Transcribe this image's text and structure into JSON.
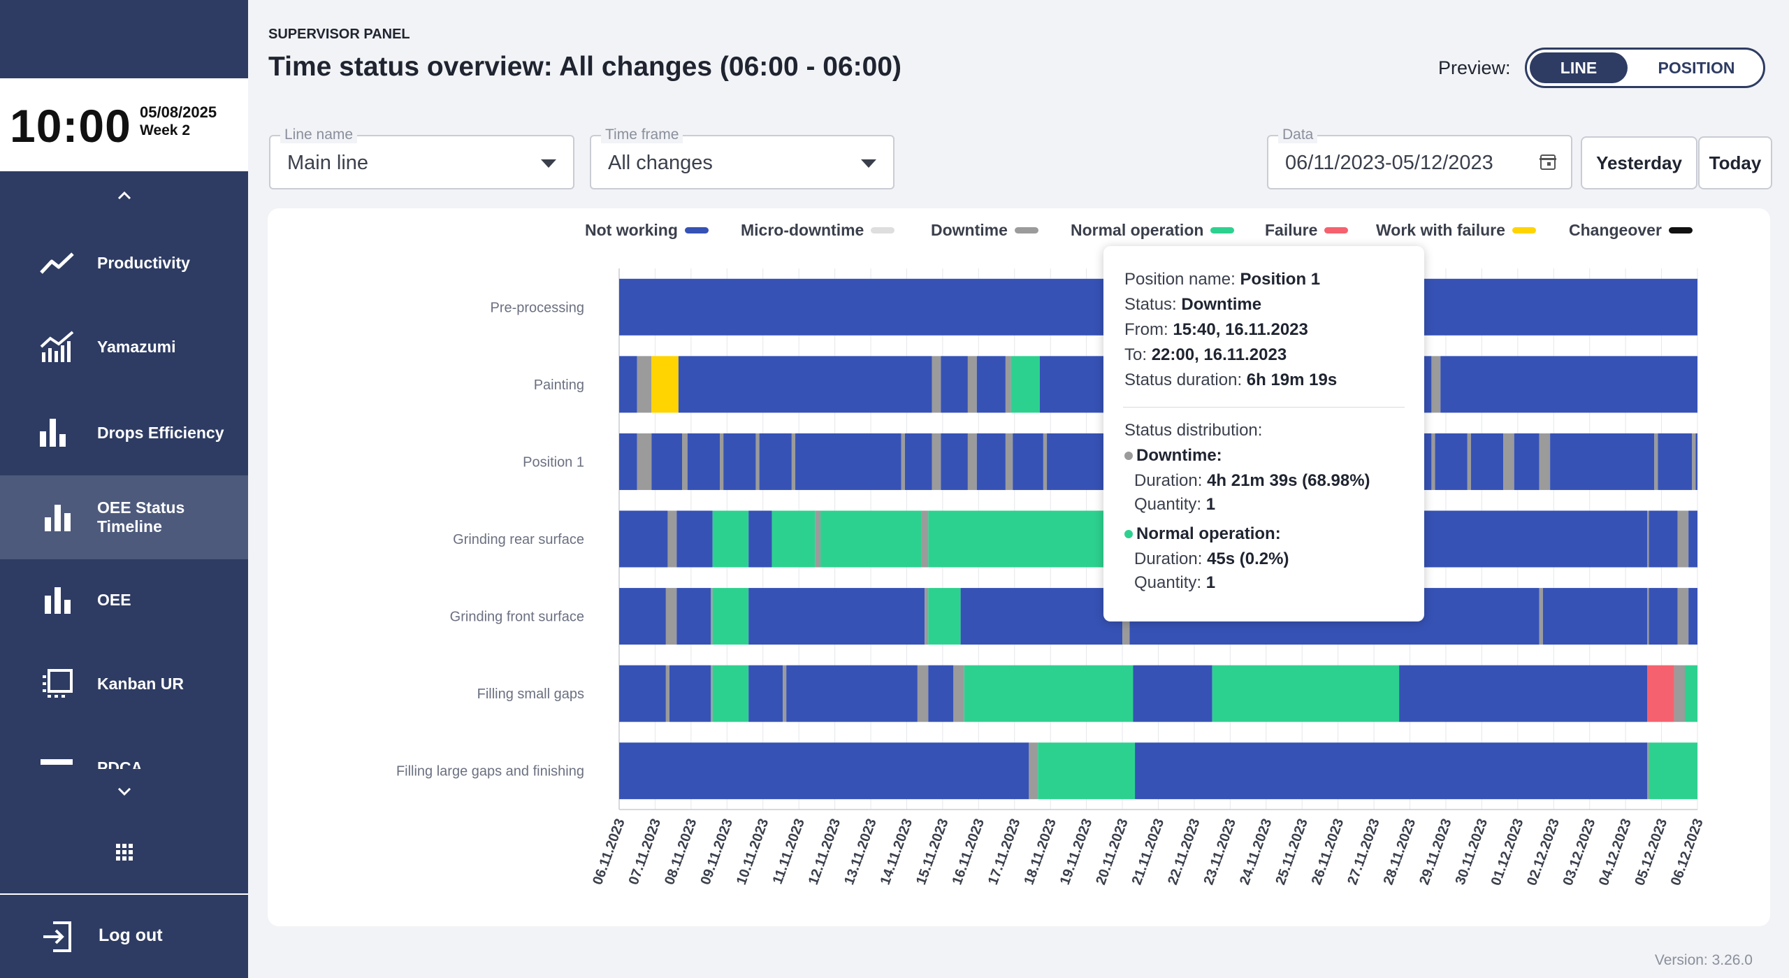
{
  "sidebar": {
    "clock": {
      "time": "10:00",
      "date": "05/08/2025",
      "week": "Week 2"
    },
    "items": [
      {
        "label": "Productivity",
        "icon": "trend-line-icon"
      },
      {
        "label": "Yamazumi",
        "icon": "area-chart-icon"
      },
      {
        "label": "Drops Efficiency",
        "icon": "bar-chart-icon"
      },
      {
        "label": "OEE Status Timeline",
        "icon": "bar-chart-icon",
        "active": true
      },
      {
        "label": "OEE",
        "icon": "bar-chart-icon"
      },
      {
        "label": "Kanban UR",
        "icon": "kanban-icon"
      },
      {
        "label": "PDCA",
        "icon": "list-icon"
      }
    ],
    "logout_label": "Log out"
  },
  "header": {
    "eyebrow": "SUPERVISOR PANEL",
    "title": "Time status overview: All changes (06:00 - 06:00)",
    "preview_label": "Preview:",
    "preview_options": [
      "LINE",
      "POSITION"
    ],
    "preview_selected": "LINE"
  },
  "filters": {
    "line_name": {
      "label": "Line name",
      "value": "Main line"
    },
    "time_frame": {
      "label": "Time frame",
      "value": "All changes"
    },
    "date": {
      "label": "Data",
      "value": "06/11/2023-05/12/2023"
    },
    "yesterday_label": "Yesterday",
    "today_label": "Today"
  },
  "version": "Version: 3.26.0",
  "colors": {
    "Not working": "#3652b5",
    "Micro-downtime": "#dedede",
    "Downtime": "#9b9b9b",
    "Normal operation": "#2dd18f",
    "Failure": "#f5616e",
    "Work with failure": "#ffd400",
    "Changeover": "#111111"
  },
  "tooltip": {
    "position_label": "Position name:",
    "position_value": "Position 1",
    "status_label": "Status:",
    "status_value": "Downtime",
    "from_label": "From:",
    "from_value": "15:40, 16.11.2023",
    "to_label": "To:",
    "to_value": "22:00, 16.11.2023",
    "duration_label": "Status duration:",
    "duration_value": "6h 19m 19s",
    "distribution_label": "Status distribution:",
    "dist": [
      {
        "status": "Downtime:",
        "color": "#9b9b9b",
        "duration_label": "Duration:",
        "duration": "4h 21m 39s (68.98%)",
        "quantity_label": "Quantity:",
        "quantity": "1"
      },
      {
        "status": "Normal operation:",
        "color": "#2dd18f",
        "duration_label": "Duration:",
        "duration": "45s (0.2%)",
        "quantity_label": "Quantity:",
        "quantity": "1"
      }
    ]
  },
  "chart_data": {
    "type": "timeline",
    "x_unit": "days",
    "x_start": "06.11.2023",
    "x_end": "06.12.2023",
    "x_tick_labels": [
      "06.11.2023",
      "07.11.2023",
      "08.11.2023",
      "09.11.2023",
      "10.11.2023",
      "11.11.2023",
      "12.11.2023",
      "13.11.2023",
      "14.11.2023",
      "15.11.2023",
      "16.11.2023",
      "17.11.2023",
      "18.11.2023",
      "19.11.2023",
      "20.11.2023",
      "21.11.2023",
      "22.11.2023",
      "23.11.2023",
      "24.11.2023",
      "25.11.2023",
      "26.11.2023",
      "27.11.2023",
      "28.11.2023",
      "29.11.2023",
      "30.11.2023",
      "01.12.2023",
      "02.12.2023",
      "03.12.2023",
      "04.12.2023",
      "05.12.2023",
      "06.12.2023"
    ],
    "legend": [
      "Not working",
      "Micro-downtime",
      "Downtime",
      "Normal operation",
      "Failure",
      "Work with failure",
      "Changeover"
    ],
    "rows": [
      {
        "name": "Pre-processing",
        "segments": [
          {
            "start": 0,
            "end": 30,
            "status": "Not working"
          }
        ]
      },
      {
        "name": "Painting",
        "segments": [
          {
            "start": 0,
            "end": 0.5,
            "status": "Not working"
          },
          {
            "start": 0.5,
            "end": 0.9,
            "status": "Downtime"
          },
          {
            "start": 0.9,
            "end": 1.65,
            "status": "Work with failure"
          },
          {
            "start": 1.65,
            "end": 8.7,
            "status": "Not working"
          },
          {
            "start": 8.7,
            "end": 8.95,
            "status": "Downtime"
          },
          {
            "start": 8.95,
            "end": 9.7,
            "status": "Not working"
          },
          {
            "start": 9.7,
            "end": 9.95,
            "status": "Downtime"
          },
          {
            "start": 9.95,
            "end": 10.75,
            "status": "Not working"
          },
          {
            "start": 10.75,
            "end": 10.9,
            "status": "Downtime"
          },
          {
            "start": 10.9,
            "end": 11.7,
            "status": "Normal operation"
          },
          {
            "start": 11.7,
            "end": 22.6,
            "status": "Not working"
          },
          {
            "start": 22.6,
            "end": 22.85,
            "status": "Downtime"
          },
          {
            "start": 22.85,
            "end": 30,
            "status": "Not working"
          }
        ]
      },
      {
        "name": "Position 1",
        "segments": [
          {
            "start": 0,
            "end": 0.5,
            "status": "Not working"
          },
          {
            "start": 0.5,
            "end": 0.9,
            "status": "Downtime"
          },
          {
            "start": 0.9,
            "end": 1.75,
            "status": "Not working"
          },
          {
            "start": 1.75,
            "end": 1.9,
            "status": "Downtime"
          },
          {
            "start": 1.9,
            "end": 2.8,
            "status": "Not working"
          },
          {
            "start": 2.8,
            "end": 2.9,
            "status": "Downtime"
          },
          {
            "start": 2.9,
            "end": 3.8,
            "status": "Not working"
          },
          {
            "start": 3.8,
            "end": 3.9,
            "status": "Downtime"
          },
          {
            "start": 3.9,
            "end": 4.8,
            "status": "Not working"
          },
          {
            "start": 4.8,
            "end": 4.9,
            "status": "Downtime"
          },
          {
            "start": 4.9,
            "end": 7.85,
            "status": "Not working"
          },
          {
            "start": 7.85,
            "end": 7.95,
            "status": "Downtime"
          },
          {
            "start": 7.95,
            "end": 8.7,
            "status": "Not working"
          },
          {
            "start": 8.7,
            "end": 8.95,
            "status": "Downtime"
          },
          {
            "start": 8.95,
            "end": 9.7,
            "status": "Not working"
          },
          {
            "start": 9.7,
            "end": 9.95,
            "status": "Downtime"
          },
          {
            "start": 9.95,
            "end": 10.75,
            "status": "Not working"
          },
          {
            "start": 10.75,
            "end": 10.95,
            "status": "Downtime"
          },
          {
            "start": 10.95,
            "end": 11.8,
            "status": "Not working"
          },
          {
            "start": 11.8,
            "end": 11.9,
            "status": "Downtime"
          },
          {
            "start": 11.9,
            "end": 22.6,
            "status": "Not working"
          },
          {
            "start": 22.6,
            "end": 22.7,
            "status": "Downtime"
          },
          {
            "start": 22.7,
            "end": 23.6,
            "status": "Not working"
          },
          {
            "start": 23.6,
            "end": 23.7,
            "status": "Downtime"
          },
          {
            "start": 23.7,
            "end": 24.6,
            "status": "Not working"
          },
          {
            "start": 24.6,
            "end": 24.9,
            "status": "Downtime"
          },
          {
            "start": 24.9,
            "end": 25.6,
            "status": "Not working"
          },
          {
            "start": 25.6,
            "end": 25.9,
            "status": "Downtime"
          },
          {
            "start": 25.9,
            "end": 28.8,
            "status": "Not working"
          },
          {
            "start": 28.8,
            "end": 28.9,
            "status": "Downtime"
          },
          {
            "start": 28.9,
            "end": 29.85,
            "status": "Not working"
          },
          {
            "start": 29.85,
            "end": 29.95,
            "status": "Downtime"
          },
          {
            "start": 29.95,
            "end": 30,
            "status": "Not working"
          }
        ]
      },
      {
        "name": "Grinding rear surface",
        "segments": [
          {
            "start": 0,
            "end": 1.35,
            "status": "Not working"
          },
          {
            "start": 1.35,
            "end": 1.6,
            "status": "Downtime"
          },
          {
            "start": 1.6,
            "end": 2.6,
            "status": "Not working"
          },
          {
            "start": 2.6,
            "end": 3.6,
            "status": "Normal operation"
          },
          {
            "start": 3.6,
            "end": 4.25,
            "status": "Not working"
          },
          {
            "start": 4.25,
            "end": 5.45,
            "status": "Normal operation"
          },
          {
            "start": 5.45,
            "end": 5.6,
            "status": "Downtime"
          },
          {
            "start": 5.6,
            "end": 8.4,
            "status": "Normal operation"
          },
          {
            "start": 8.4,
            "end": 8.6,
            "status": "Downtime"
          },
          {
            "start": 8.6,
            "end": 14.8,
            "status": "Normal operation"
          },
          {
            "start": 14.8,
            "end": 28.6,
            "status": "Not working"
          },
          {
            "start": 28.6,
            "end": 28.65,
            "status": "Downtime"
          },
          {
            "start": 28.65,
            "end": 29.45,
            "status": "Not working"
          },
          {
            "start": 29.45,
            "end": 29.75,
            "status": "Downtime"
          },
          {
            "start": 29.75,
            "end": 30,
            "status": "Not working"
          }
        ]
      },
      {
        "name": "Grinding front surface",
        "segments": [
          {
            "start": 0,
            "end": 1.3,
            "status": "Not working"
          },
          {
            "start": 1.3,
            "end": 1.6,
            "status": "Downtime"
          },
          {
            "start": 1.6,
            "end": 2.55,
            "status": "Not working"
          },
          {
            "start": 2.55,
            "end": 2.6,
            "status": "Downtime"
          },
          {
            "start": 2.6,
            "end": 3.6,
            "status": "Normal operation"
          },
          {
            "start": 3.6,
            "end": 8.5,
            "status": "Not working"
          },
          {
            "start": 8.5,
            "end": 8.6,
            "status": "Downtime"
          },
          {
            "start": 8.6,
            "end": 9.5,
            "status": "Normal operation"
          },
          {
            "start": 9.5,
            "end": 14.0,
            "status": "Not working"
          },
          {
            "start": 14.0,
            "end": 14.2,
            "status": "Downtime"
          },
          {
            "start": 14.2,
            "end": 25.6,
            "status": "Not working"
          },
          {
            "start": 25.6,
            "end": 25.7,
            "status": "Downtime"
          },
          {
            "start": 25.7,
            "end": 28.6,
            "status": "Not working"
          },
          {
            "start": 28.6,
            "end": 28.65,
            "status": "Downtime"
          },
          {
            "start": 28.65,
            "end": 29.45,
            "status": "Not working"
          },
          {
            "start": 29.45,
            "end": 29.75,
            "status": "Downtime"
          },
          {
            "start": 29.75,
            "end": 30,
            "status": "Not working"
          }
        ]
      },
      {
        "name": "Filling small gaps",
        "segments": [
          {
            "start": 0,
            "end": 1.3,
            "status": "Not working"
          },
          {
            "start": 1.3,
            "end": 1.4,
            "status": "Downtime"
          },
          {
            "start": 1.4,
            "end": 2.55,
            "status": "Not working"
          },
          {
            "start": 2.55,
            "end": 2.6,
            "status": "Downtime"
          },
          {
            "start": 2.6,
            "end": 3.6,
            "status": "Normal operation"
          },
          {
            "start": 3.6,
            "end": 4.55,
            "status": "Not working"
          },
          {
            "start": 4.55,
            "end": 4.65,
            "status": "Downtime"
          },
          {
            "start": 4.65,
            "end": 8.3,
            "status": "Not working"
          },
          {
            "start": 8.3,
            "end": 8.6,
            "status": "Downtime"
          },
          {
            "start": 8.6,
            "end": 9.3,
            "status": "Not working"
          },
          {
            "start": 9.3,
            "end": 9.6,
            "status": "Downtime"
          },
          {
            "start": 9.6,
            "end": 14.3,
            "status": "Normal operation"
          },
          {
            "start": 14.3,
            "end": 16.5,
            "status": "Not working"
          },
          {
            "start": 16.5,
            "end": 21.7,
            "status": "Normal operation"
          },
          {
            "start": 21.7,
            "end": 28.6,
            "status": "Not working"
          },
          {
            "start": 28.6,
            "end": 29.35,
            "status": "Failure"
          },
          {
            "start": 29.35,
            "end": 29.65,
            "status": "Downtime"
          },
          {
            "start": 29.65,
            "end": 30,
            "status": "Normal operation"
          }
        ]
      },
      {
        "name": "Filling large gaps and finishing",
        "segments": [
          {
            "start": 0,
            "end": 11.4,
            "status": "Not working"
          },
          {
            "start": 11.4,
            "end": 11.65,
            "status": "Downtime"
          },
          {
            "start": 11.65,
            "end": 14.35,
            "status": "Normal operation"
          },
          {
            "start": 14.35,
            "end": 28.6,
            "status": "Not working"
          },
          {
            "start": 28.6,
            "end": 28.65,
            "status": "Downtime"
          },
          {
            "start": 28.65,
            "end": 30,
            "status": "Normal operation"
          }
        ]
      }
    ]
  }
}
